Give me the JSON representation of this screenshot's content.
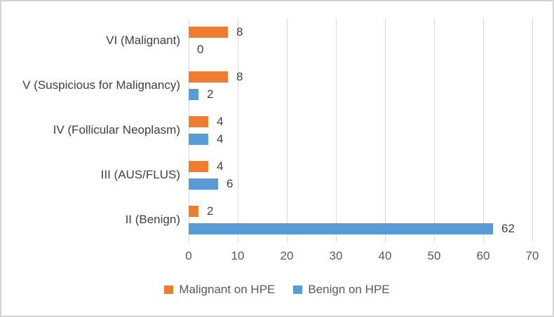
{
  "chart_data": {
    "type": "bar",
    "orientation": "horizontal",
    "categories": [
      "VI (Malignant)",
      "V (Suspicious for Malignancy)",
      "IV (Follicular Neoplasm)",
      "III (AUS/FLUS)",
      "II (Benign)"
    ],
    "series": [
      {
        "name": "Malignant on HPE",
        "color": "#ED7D31",
        "values": [
          8,
          8,
          4,
          4,
          2
        ]
      },
      {
        "name": "Benign on HPE",
        "color": "#5B9BD5",
        "values": [
          0,
          2,
          4,
          6,
          62
        ]
      }
    ],
    "xlim": [
      0,
      70
    ],
    "x_ticks": [
      0,
      10,
      20,
      30,
      40,
      50,
      60,
      70
    ],
    "grid": true,
    "data_labels": true,
    "legend_position": "bottom"
  },
  "styles": {
    "gridline_color": "#D9D9D9",
    "data_label_color": "#404040",
    "tick_label_color": "#595959",
    "frame_border_color": "#D3D3D3",
    "background": "#FFFFFF"
  }
}
